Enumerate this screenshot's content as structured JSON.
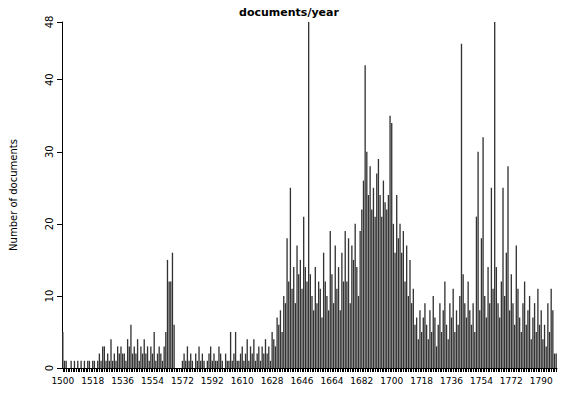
{
  "chart_data": {
    "type": "bar",
    "title": "documents/year",
    "y_label": "Number of documents",
    "categories": [
      "1500",
      null,
      null,
      null,
      null,
      null,
      null,
      null,
      null,
      null,
      null,
      null,
      null,
      null,
      null,
      null,
      null,
      null,
      "1518",
      null,
      null,
      null,
      null,
      null,
      null,
      null,
      null,
      null,
      null,
      null,
      null,
      null,
      null,
      null,
      null,
      null,
      "1536",
      null,
      null,
      null,
      null,
      null,
      null,
      null,
      null,
      null,
      null,
      null,
      null,
      null,
      null,
      null,
      null,
      null,
      "1554",
      null,
      null,
      null,
      null,
      null,
      null,
      null,
      null,
      null,
      null,
      null,
      null,
      null,
      null,
      null,
      null,
      null,
      "1572",
      null,
      null,
      null,
      null,
      null,
      null,
      null,
      null,
      null,
      null,
      null,
      null,
      null,
      null,
      null,
      null,
      null,
      "1592",
      null,
      null,
      null,
      null,
      null,
      null,
      null,
      null,
      null,
      null,
      null,
      null,
      null,
      null,
      null,
      null,
      null,
      "1610",
      null,
      null,
      null,
      null,
      null,
      null,
      null,
      null,
      null,
      null,
      null,
      null,
      null,
      null,
      null,
      null,
      null,
      "1628",
      null,
      null,
      null,
      null,
      null,
      null,
      null,
      null,
      null,
      null,
      null,
      null,
      null,
      null,
      null,
      null,
      null,
      "1646",
      null,
      null,
      null,
      null,
      null,
      null,
      null,
      null,
      null,
      null,
      null,
      null,
      null,
      null,
      null,
      null,
      null,
      "1664",
      null,
      null,
      null,
      null,
      null,
      null,
      null,
      null,
      null,
      null,
      null,
      null,
      null,
      null,
      null,
      null,
      null,
      "1682",
      null,
      null,
      null,
      null,
      null,
      null,
      null,
      null,
      null,
      null,
      null,
      null,
      null,
      null,
      null,
      null,
      null,
      "1700",
      null,
      null,
      null,
      null,
      null,
      null,
      null,
      null,
      null,
      null,
      null,
      null,
      null,
      null,
      null,
      null,
      null,
      "1718",
      null,
      null,
      null,
      null,
      null,
      null,
      null,
      null,
      null,
      null,
      null,
      null,
      null,
      null,
      null,
      null,
      null,
      "1736",
      null,
      null,
      null,
      null,
      null,
      null,
      null,
      null,
      null,
      null,
      null,
      null,
      null,
      null,
      null,
      null,
      null,
      "1754",
      null,
      null,
      null,
      null,
      null,
      null,
      null,
      null,
      null,
      null,
      null,
      null,
      null,
      null,
      null,
      null,
      null,
      "1772",
      null,
      null,
      null,
      null,
      null,
      null,
      null,
      null,
      null,
      null,
      null,
      null,
      null,
      null,
      null,
      null,
      null,
      "1790",
      null,
      null,
      null,
      null,
      null,
      null,
      null,
      null,
      null
    ],
    "values": [
      5,
      1,
      1,
      0,
      0,
      1,
      0,
      1,
      0,
      1,
      0,
      1,
      0,
      1,
      0,
      1,
      1,
      0,
      1,
      1,
      0,
      1,
      2,
      1,
      3,
      3,
      1,
      2,
      1,
      4,
      1,
      2,
      1,
      3,
      2,
      3,
      2,
      2,
      1,
      4,
      3,
      6,
      2,
      3,
      2,
      4,
      1,
      3,
      2,
      4,
      2,
      3,
      1,
      3,
      2,
      5,
      1,
      2,
      3,
      2,
      1,
      3,
      5,
      15,
      12,
      12,
      16,
      6,
      0,
      0,
      0,
      0,
      1,
      2,
      1,
      3,
      1,
      2,
      1,
      0,
      2,
      1,
      3,
      1,
      2,
      1,
      0,
      1,
      2,
      3,
      1,
      2,
      1,
      1,
      3,
      2,
      1,
      0,
      2,
      1,
      1,
      5,
      1,
      2,
      5,
      1,
      1,
      2,
      3,
      1,
      2,
      4,
      1,
      3,
      2,
      4,
      1,
      2,
      3,
      1,
      3,
      2,
      4,
      2,
      3,
      1,
      5,
      4,
      3,
      7,
      6,
      8,
      5,
      10,
      9,
      18,
      12,
      25,
      11,
      14,
      9,
      17,
      13,
      15,
      11,
      21,
      14,
      12,
      48,
      13,
      10,
      8,
      14,
      9,
      12,
      11,
      7,
      16,
      12,
      10,
      8,
      19,
      13,
      9,
      17,
      11,
      14,
      8,
      16,
      12,
      19,
      12,
      18,
      9,
      17,
      15,
      20,
      14,
      10,
      19,
      22,
      26,
      42,
      30,
      24,
      28,
      22,
      25,
      21,
      27,
      29,
      24,
      21,
      26,
      23,
      22,
      24,
      35,
      34,
      20,
      16,
      24,
      18,
      20,
      16,
      19,
      12,
      17,
      10,
      15,
      9,
      11,
      6,
      7,
      4,
      8,
      5,
      7,
      9,
      6,
      4,
      8,
      5,
      10,
      7,
      3,
      6,
      9,
      5,
      8,
      12,
      6,
      4,
      9,
      7,
      11,
      5,
      8,
      6,
      10,
      45,
      13,
      9,
      7,
      12,
      8,
      6,
      9,
      5,
      21,
      30,
      8,
      18,
      32,
      10,
      7,
      14,
      9,
      25,
      11,
      48,
      14,
      9,
      7,
      12,
      25,
      10,
      16,
      28,
      8,
      13,
      9,
      6,
      17,
      11,
      7,
      5,
      9,
      12,
      6,
      8,
      10,
      4,
      7,
      9,
      5,
      11,
      6,
      8,
      4,
      6,
      3,
      9,
      5,
      11,
      8,
      2,
      2
    ],
    "color": "#333333",
    "ylim": [
      0,
      48
    ],
    "yticks": [
      0,
      10,
      20,
      30,
      40
    ],
    "grid": false
  }
}
